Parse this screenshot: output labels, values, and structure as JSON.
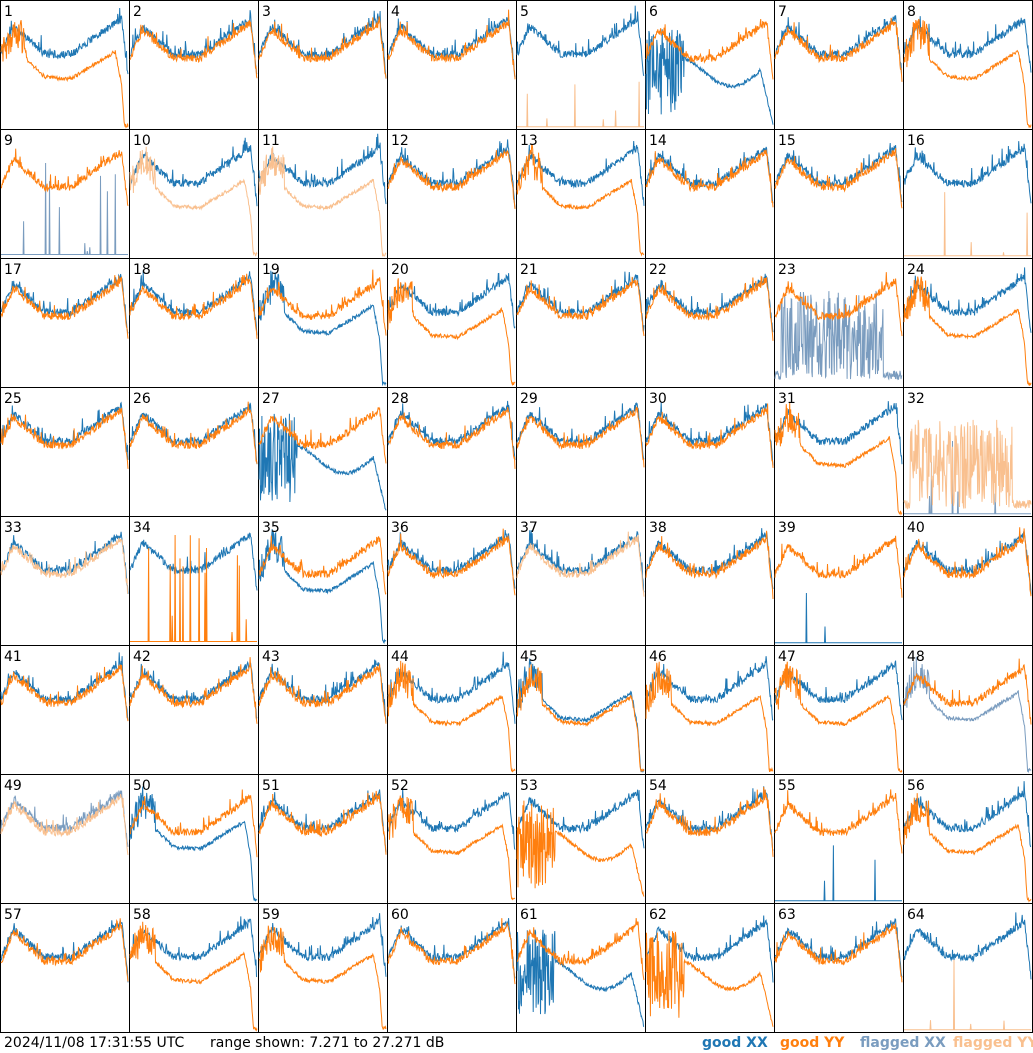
{
  "footer": {
    "timestamp": "2024/11/08 17:31:55 UTC",
    "range_text": "range shown: 7.271 to 27.271 dB"
  },
  "legend": [
    {
      "key": "good_xx",
      "label": "good XX",
      "color": "#1f77b4"
    },
    {
      "key": "good_yy",
      "label": "good YY",
      "color": "#ff7f0e"
    },
    {
      "key": "flagged_xx",
      "label": "flagged XX",
      "color": "#7a9cbf"
    },
    {
      "key": "flagged_yy",
      "label": "flagged YY",
      "color": "#f9c08f"
    }
  ],
  "chart_data": {
    "type": "line",
    "layout": "8x8 small multiples",
    "y_unit": "dB",
    "ylim": [
      7.271,
      27.271
    ],
    "x_axis": "frequency channel (unlabeled)",
    "panels": [
      {
        "id": 1,
        "xx": {
          "shape": "normal",
          "flagged": false
        },
        "yy": {
          "shape": "droop",
          "flagged": false
        }
      },
      {
        "id": 2,
        "xx": {
          "shape": "normal",
          "flagged": false
        },
        "yy": {
          "shape": "normal",
          "flagged": false
        }
      },
      {
        "id": 3,
        "xx": {
          "shape": "normal",
          "flagged": false
        },
        "yy": {
          "shape": "normal",
          "flagged": false
        }
      },
      {
        "id": 4,
        "xx": {
          "shape": "normal",
          "flagged": false
        },
        "yy": {
          "shape": "normal",
          "flagged": false
        }
      },
      {
        "id": 5,
        "xx": {
          "shape": "normal",
          "flagged": false
        },
        "yy": {
          "shape": "dead",
          "flagged": true
        }
      },
      {
        "id": 6,
        "xx": {
          "shape": "oscillating",
          "flagged": false
        },
        "yy": {
          "shape": "normal",
          "flagged": false
        }
      },
      {
        "id": 7,
        "xx": {
          "shape": "normal",
          "flagged": false
        },
        "yy": {
          "shape": "normal",
          "flagged": false
        }
      },
      {
        "id": 8,
        "xx": {
          "shape": "normal",
          "flagged": false
        },
        "yy": {
          "shape": "droop",
          "flagged": false
        }
      },
      {
        "id": 9,
        "xx": {
          "shape": "spiky",
          "flagged": true
        },
        "yy": {
          "shape": "normal",
          "flagged": false
        }
      },
      {
        "id": 10,
        "xx": {
          "shape": "normal",
          "flagged": false
        },
        "yy": {
          "shape": "droop",
          "flagged": true
        }
      },
      {
        "id": 11,
        "xx": {
          "shape": "normal",
          "flagged": false
        },
        "yy": {
          "shape": "droop",
          "flagged": true
        }
      },
      {
        "id": 12,
        "xx": {
          "shape": "normal",
          "flagged": false
        },
        "yy": {
          "shape": "normal",
          "flagged": false
        }
      },
      {
        "id": 13,
        "xx": {
          "shape": "normal",
          "flagged": false
        },
        "yy": {
          "shape": "droop",
          "flagged": false
        }
      },
      {
        "id": 14,
        "xx": {
          "shape": "normal",
          "flagged": false
        },
        "yy": {
          "shape": "normal",
          "flagged": false
        }
      },
      {
        "id": 15,
        "xx": {
          "shape": "normal",
          "flagged": false
        },
        "yy": {
          "shape": "normal",
          "flagged": false
        }
      },
      {
        "id": 16,
        "xx": {
          "shape": "normal",
          "flagged": false
        },
        "yy": {
          "shape": "dead",
          "flagged": true
        }
      },
      {
        "id": 17,
        "xx": {
          "shape": "normal",
          "flagged": false
        },
        "yy": {
          "shape": "normal",
          "flagged": false
        }
      },
      {
        "id": 18,
        "xx": {
          "shape": "normal",
          "flagged": false
        },
        "yy": {
          "shape": "normal",
          "flagged": false
        }
      },
      {
        "id": 19,
        "xx": {
          "shape": "droop",
          "flagged": false
        },
        "yy": {
          "shape": "normal",
          "flagged": false
        }
      },
      {
        "id": 20,
        "xx": {
          "shape": "normal",
          "flagged": false
        },
        "yy": {
          "shape": "droop",
          "flagged": false
        }
      },
      {
        "id": 21,
        "xx": {
          "shape": "normal",
          "flagged": false
        },
        "yy": {
          "shape": "normal",
          "flagged": false
        }
      },
      {
        "id": 22,
        "xx": {
          "shape": "normal",
          "flagged": false
        },
        "yy": {
          "shape": "normal",
          "flagged": false
        }
      },
      {
        "id": 23,
        "xx": {
          "shape": "noisy",
          "flagged": true
        },
        "yy": {
          "shape": "normal",
          "flagged": false
        }
      },
      {
        "id": 24,
        "xx": {
          "shape": "normal",
          "flagged": false
        },
        "yy": {
          "shape": "droop",
          "flagged": false
        }
      },
      {
        "id": 25,
        "xx": {
          "shape": "normal",
          "flagged": false
        },
        "yy": {
          "shape": "normal",
          "flagged": false
        }
      },
      {
        "id": 26,
        "xx": {
          "shape": "normal",
          "flagged": false
        },
        "yy": {
          "shape": "normal",
          "flagged": false
        }
      },
      {
        "id": 27,
        "xx": {
          "shape": "oscillating",
          "flagged": false
        },
        "yy": {
          "shape": "normal",
          "flagged": false
        }
      },
      {
        "id": 28,
        "xx": {
          "shape": "normal",
          "flagged": false
        },
        "yy": {
          "shape": "normal",
          "flagged": false
        }
      },
      {
        "id": 29,
        "xx": {
          "shape": "normal",
          "flagged": false
        },
        "yy": {
          "shape": "normal",
          "flagged": false
        }
      },
      {
        "id": 30,
        "xx": {
          "shape": "normal",
          "flagged": false
        },
        "yy": {
          "shape": "normal",
          "flagged": false
        }
      },
      {
        "id": 31,
        "xx": {
          "shape": "normal",
          "flagged": false
        },
        "yy": {
          "shape": "droop",
          "flagged": false
        }
      },
      {
        "id": 32,
        "xx": {
          "shape": "dead",
          "flagged": true
        },
        "yy": {
          "shape": "noisy",
          "flagged": true
        }
      },
      {
        "id": 33,
        "xx": {
          "shape": "normal",
          "flagged": false
        },
        "yy": {
          "shape": "normal",
          "flagged": true
        }
      },
      {
        "id": 34,
        "xx": {
          "shape": "normal",
          "flagged": false
        },
        "yy": {
          "shape": "spiky",
          "flagged": false
        }
      },
      {
        "id": 35,
        "xx": {
          "shape": "droop",
          "flagged": false
        },
        "yy": {
          "shape": "normal",
          "flagged": false
        }
      },
      {
        "id": 36,
        "xx": {
          "shape": "normal",
          "flagged": false
        },
        "yy": {
          "shape": "normal",
          "flagged": false
        }
      },
      {
        "id": 37,
        "xx": {
          "shape": "normal",
          "flagged": false
        },
        "yy": {
          "shape": "normal",
          "flagged": true
        }
      },
      {
        "id": 38,
        "xx": {
          "shape": "normal",
          "flagged": false
        },
        "yy": {
          "shape": "normal",
          "flagged": false
        }
      },
      {
        "id": 39,
        "xx": {
          "shape": "dead",
          "flagged": false
        },
        "yy": {
          "shape": "normal",
          "flagged": false
        }
      },
      {
        "id": 40,
        "xx": {
          "shape": "normal",
          "flagged": false
        },
        "yy": {
          "shape": "normal",
          "flagged": false
        }
      },
      {
        "id": 41,
        "xx": {
          "shape": "normal",
          "flagged": false
        },
        "yy": {
          "shape": "normal",
          "flagged": false
        }
      },
      {
        "id": 42,
        "xx": {
          "shape": "normal",
          "flagged": false
        },
        "yy": {
          "shape": "normal",
          "flagged": false
        }
      },
      {
        "id": 43,
        "xx": {
          "shape": "normal",
          "flagged": false
        },
        "yy": {
          "shape": "normal",
          "flagged": false
        }
      },
      {
        "id": 44,
        "xx": {
          "shape": "normal",
          "flagged": false
        },
        "yy": {
          "shape": "droop",
          "flagged": false
        }
      },
      {
        "id": 45,
        "xx": {
          "shape": "droop",
          "flagged": false
        },
        "yy": {
          "shape": "droop",
          "flagged": false
        }
      },
      {
        "id": 46,
        "xx": {
          "shape": "normal",
          "flagged": false
        },
        "yy": {
          "shape": "droop",
          "flagged": false
        }
      },
      {
        "id": 47,
        "xx": {
          "shape": "normal",
          "flagged": false
        },
        "yy": {
          "shape": "droop",
          "flagged": false
        }
      },
      {
        "id": 48,
        "xx": {
          "shape": "droop",
          "flagged": true
        },
        "yy": {
          "shape": "normal",
          "flagged": false
        }
      },
      {
        "id": 49,
        "xx": {
          "shape": "normal",
          "flagged": true
        },
        "yy": {
          "shape": "normal",
          "flagged": true
        }
      },
      {
        "id": 50,
        "xx": {
          "shape": "droop",
          "flagged": false
        },
        "yy": {
          "shape": "normal",
          "flagged": false
        }
      },
      {
        "id": 51,
        "xx": {
          "shape": "normal",
          "flagged": false
        },
        "yy": {
          "shape": "normal",
          "flagged": false
        }
      },
      {
        "id": 52,
        "xx": {
          "shape": "normal",
          "flagged": false
        },
        "yy": {
          "shape": "droop",
          "flagged": false
        }
      },
      {
        "id": 53,
        "xx": {
          "shape": "normal",
          "flagged": false
        },
        "yy": {
          "shape": "oscillating",
          "flagged": false
        }
      },
      {
        "id": 54,
        "xx": {
          "shape": "normal",
          "flagged": false
        },
        "yy": {
          "shape": "normal",
          "flagged": false
        }
      },
      {
        "id": 55,
        "xx": {
          "shape": "dead",
          "flagged": false
        },
        "yy": {
          "shape": "normal",
          "flagged": false
        }
      },
      {
        "id": 56,
        "xx": {
          "shape": "normal",
          "flagged": false
        },
        "yy": {
          "shape": "droop",
          "flagged": false
        }
      },
      {
        "id": 57,
        "xx": {
          "shape": "normal",
          "flagged": false
        },
        "yy": {
          "shape": "normal",
          "flagged": false
        }
      },
      {
        "id": 58,
        "xx": {
          "shape": "normal",
          "flagged": false
        },
        "yy": {
          "shape": "droop",
          "flagged": false
        }
      },
      {
        "id": 59,
        "xx": {
          "shape": "normal",
          "flagged": false
        },
        "yy": {
          "shape": "droop",
          "flagged": false
        }
      },
      {
        "id": 60,
        "xx": {
          "shape": "normal",
          "flagged": false
        },
        "yy": {
          "shape": "normal",
          "flagged": false
        }
      },
      {
        "id": 61,
        "xx": {
          "shape": "oscillating",
          "flagged": false
        },
        "yy": {
          "shape": "normal",
          "flagged": false
        }
      },
      {
        "id": 62,
        "xx": {
          "shape": "normal",
          "flagged": false
        },
        "yy": {
          "shape": "oscillating",
          "flagged": false
        }
      },
      {
        "id": 63,
        "xx": {
          "shape": "normal",
          "flagged": false
        },
        "yy": {
          "shape": "normal",
          "flagged": false
        }
      },
      {
        "id": 64,
        "xx": {
          "shape": "normal",
          "flagged": false
        },
        "yy": {
          "shape": "dead",
          "flagged": true
        }
      }
    ]
  }
}
